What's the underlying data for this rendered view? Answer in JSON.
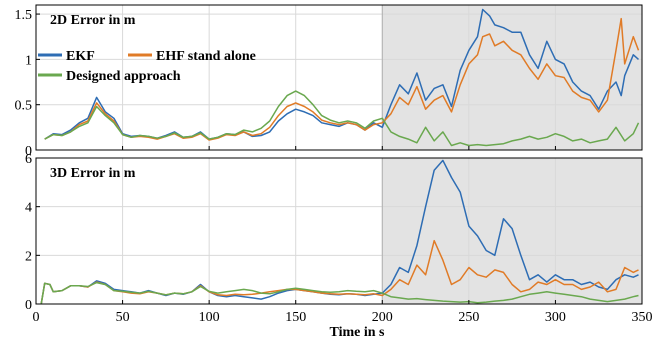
{
  "chart_data": [
    {
      "type": "line",
      "title": "2D Error in m",
      "xlabel": "",
      "ylabel": "",
      "xlim": [
        0,
        350
      ],
      "ylim": [
        0,
        1.6
      ],
      "xticks": [
        0,
        50,
        100,
        150,
        200,
        250,
        300,
        350
      ],
      "xtick_labels": [
        "",
        "",
        "",
        "",
        "",
        "",
        "",
        ""
      ],
      "yticks": [
        0,
        0.5,
        1,
        1.5
      ],
      "ytick_labels": [
        "0",
        "0.5",
        "1",
        "1.5"
      ],
      "grid": true,
      "legend": "top-left",
      "shaded_region": [
        200,
        350
      ],
      "series": [
        {
          "name": "EKF",
          "color": "#2e6db4",
          "x": [
            5,
            10,
            15,
            20,
            25,
            30,
            35,
            40,
            45,
            50,
            55,
            60,
            65,
            70,
            75,
            80,
            85,
            90,
            95,
            100,
            105,
            110,
            115,
            120,
            125,
            130,
            135,
            140,
            145,
            150,
            155,
            160,
            165,
            170,
            175,
            180,
            185,
            190,
            195,
            200,
            205,
            210,
            215,
            220,
            225,
            230,
            235,
            240,
            245,
            250,
            255,
            258,
            262,
            265,
            270,
            275,
            280,
            285,
            290,
            295,
            300,
            305,
            310,
            315,
            320,
            325,
            330,
            335,
            338,
            340,
            345,
            348
          ],
          "y": [
            0.12,
            0.18,
            0.17,
            0.22,
            0.3,
            0.35,
            0.58,
            0.42,
            0.35,
            0.18,
            0.15,
            0.16,
            0.15,
            0.13,
            0.16,
            0.2,
            0.14,
            0.15,
            0.2,
            0.12,
            0.14,
            0.18,
            0.17,
            0.2,
            0.15,
            0.16,
            0.2,
            0.32,
            0.4,
            0.45,
            0.42,
            0.38,
            0.3,
            0.28,
            0.26,
            0.3,
            0.28,
            0.22,
            0.3,
            0.25,
            0.5,
            0.72,
            0.62,
            0.85,
            0.55,
            0.68,
            0.72,
            0.48,
            0.88,
            1.1,
            1.25,
            1.55,
            1.48,
            1.38,
            1.35,
            1.3,
            1.3,
            1.05,
            0.9,
            1.2,
            1.0,
            0.95,
            0.75,
            0.65,
            0.6,
            0.45,
            0.65,
            0.75,
            0.6,
            0.82,
            1.05,
            1.0
          ]
        },
        {
          "name": "EHF stand alone",
          "color": "#e07b27",
          "x": [
            5,
            10,
            15,
            20,
            25,
            30,
            35,
            40,
            45,
            50,
            55,
            60,
            65,
            70,
            75,
            80,
            85,
            90,
            95,
            100,
            105,
            110,
            115,
            120,
            125,
            130,
            135,
            140,
            145,
            150,
            155,
            160,
            165,
            170,
            175,
            180,
            185,
            190,
            195,
            200,
            205,
            210,
            215,
            220,
            225,
            230,
            235,
            240,
            245,
            250,
            255,
            258,
            262,
            265,
            270,
            275,
            280,
            285,
            290,
            295,
            300,
            305,
            310,
            315,
            320,
            325,
            330,
            335,
            338,
            340,
            345,
            348
          ],
          "y": [
            0.12,
            0.17,
            0.16,
            0.2,
            0.28,
            0.32,
            0.52,
            0.4,
            0.32,
            0.17,
            0.14,
            0.15,
            0.14,
            0.12,
            0.15,
            0.18,
            0.13,
            0.14,
            0.18,
            0.11,
            0.13,
            0.17,
            0.16,
            0.2,
            0.16,
            0.18,
            0.25,
            0.38,
            0.48,
            0.52,
            0.48,
            0.42,
            0.33,
            0.3,
            0.28,
            0.3,
            0.28,
            0.22,
            0.28,
            0.3,
            0.4,
            0.58,
            0.5,
            0.7,
            0.45,
            0.55,
            0.6,
            0.42,
            0.72,
            0.95,
            1.05,
            1.25,
            1.28,
            1.15,
            1.2,
            1.1,
            1.05,
            0.9,
            0.78,
            0.95,
            0.82,
            0.8,
            0.65,
            0.58,
            0.55,
            0.42,
            0.55,
            1.1,
            1.45,
            0.95,
            1.25,
            1.1
          ]
        },
        {
          "name": "Designed approach",
          "color": "#6aa84f",
          "x": [
            5,
            10,
            15,
            20,
            25,
            30,
            35,
            40,
            45,
            50,
            55,
            60,
            65,
            70,
            75,
            80,
            85,
            90,
            95,
            100,
            105,
            110,
            115,
            120,
            125,
            130,
            135,
            140,
            145,
            150,
            155,
            160,
            165,
            170,
            175,
            180,
            185,
            190,
            195,
            200,
            205,
            210,
            215,
            220,
            225,
            230,
            235,
            240,
            245,
            250,
            255,
            260,
            265,
            270,
            275,
            280,
            285,
            290,
            295,
            300,
            305,
            310,
            315,
            320,
            325,
            330,
            335,
            340,
            345,
            348
          ],
          "y": [
            0.12,
            0.17,
            0.16,
            0.2,
            0.26,
            0.3,
            0.48,
            0.38,
            0.3,
            0.17,
            0.14,
            0.16,
            0.15,
            0.13,
            0.15,
            0.19,
            0.14,
            0.15,
            0.19,
            0.12,
            0.14,
            0.18,
            0.17,
            0.22,
            0.2,
            0.24,
            0.32,
            0.48,
            0.6,
            0.65,
            0.6,
            0.5,
            0.38,
            0.33,
            0.3,
            0.32,
            0.3,
            0.24,
            0.32,
            0.35,
            0.2,
            0.15,
            0.12,
            0.08,
            0.25,
            0.1,
            0.2,
            0.05,
            0.08,
            0.05,
            0.06,
            0.05,
            0.06,
            0.07,
            0.1,
            0.12,
            0.15,
            0.12,
            0.14,
            0.18,
            0.15,
            0.1,
            0.12,
            0.08,
            0.1,
            0.12,
            0.25,
            0.1,
            0.18,
            0.3
          ]
        }
      ]
    },
    {
      "type": "line",
      "title": "3D Error in m",
      "xlabel": "Time in s",
      "ylabel": "",
      "xlim": [
        0,
        350
      ],
      "ylim": [
        0,
        6
      ],
      "xticks": [
        0,
        50,
        100,
        150,
        200,
        250,
        300,
        350
      ],
      "xtick_labels": [
        "0",
        "50",
        "100",
        "150",
        "200",
        "250",
        "300",
        "350"
      ],
      "yticks": [
        0,
        2,
        4,
        6
      ],
      "ytick_labels": [
        "0",
        "2",
        "4",
        "6"
      ],
      "grid": true,
      "shaded_region": [
        200,
        350
      ],
      "series": [
        {
          "name": "EKF",
          "color": "#2e6db4",
          "x": [
            3,
            5,
            8,
            10,
            15,
            20,
            25,
            30,
            35,
            40,
            45,
            50,
            55,
            60,
            65,
            70,
            75,
            80,
            85,
            90,
            95,
            100,
            105,
            110,
            115,
            120,
            125,
            130,
            135,
            140,
            145,
            150,
            155,
            160,
            165,
            170,
            175,
            180,
            185,
            190,
            195,
            200,
            205,
            210,
            215,
            220,
            225,
            230,
            235,
            240,
            245,
            250,
            255,
            260,
            265,
            270,
            275,
            280,
            285,
            290,
            295,
            300,
            305,
            310,
            315,
            320,
            325,
            330,
            335,
            340,
            345,
            348
          ],
          "y": [
            0,
            0.85,
            0.8,
            0.5,
            0.55,
            0.75,
            0.75,
            0.7,
            0.95,
            0.85,
            0.6,
            0.55,
            0.5,
            0.45,
            0.55,
            0.45,
            0.35,
            0.45,
            0.4,
            0.5,
            0.8,
            0.5,
            0.35,
            0.3,
            0.35,
            0.3,
            0.25,
            0.2,
            0.3,
            0.45,
            0.55,
            0.6,
            0.55,
            0.5,
            0.45,
            0.4,
            0.38,
            0.42,
            0.4,
            0.35,
            0.4,
            0.45,
            0.8,
            1.5,
            1.3,
            2.4,
            4.0,
            5.5,
            5.9,
            5.2,
            4.6,
            3.2,
            2.8,
            2.2,
            2.0,
            3.5,
            3.1,
            2.0,
            1.0,
            1.2,
            0.9,
            1.2,
            1.0,
            1.0,
            0.8,
            0.9,
            0.7,
            0.6,
            1.0,
            1.2,
            1.1,
            1.2
          ]
        },
        {
          "name": "EHF stand alone",
          "color": "#e07b27",
          "x": [
            3,
            5,
            8,
            10,
            15,
            20,
            25,
            30,
            35,
            40,
            45,
            50,
            55,
            60,
            65,
            70,
            75,
            80,
            85,
            90,
            95,
            100,
            105,
            110,
            115,
            120,
            125,
            130,
            135,
            140,
            145,
            150,
            155,
            160,
            165,
            170,
            175,
            180,
            185,
            190,
            195,
            200,
            205,
            210,
            215,
            220,
            225,
            230,
            235,
            240,
            245,
            250,
            255,
            260,
            265,
            270,
            275,
            280,
            285,
            290,
            295,
            300,
            305,
            310,
            315,
            320,
            325,
            330,
            335,
            340,
            345,
            348
          ],
          "y": [
            0,
            0.85,
            0.8,
            0.5,
            0.55,
            0.75,
            0.75,
            0.7,
            0.9,
            0.8,
            0.55,
            0.5,
            0.45,
            0.42,
            0.5,
            0.45,
            0.38,
            0.45,
            0.42,
            0.5,
            0.75,
            0.5,
            0.38,
            0.35,
            0.4,
            0.38,
            0.4,
            0.45,
            0.5,
            0.55,
            0.6,
            0.6,
            0.55,
            0.5,
            0.45,
            0.42,
            0.4,
            0.42,
            0.4,
            0.38,
            0.42,
            0.35,
            0.6,
            1.0,
            0.8,
            1.6,
            1.2,
            2.6,
            1.8,
            0.8,
            1.0,
            1.5,
            1.2,
            1.1,
            1.4,
            1.3,
            0.8,
            0.5,
            0.6,
            0.9,
            0.8,
            1.0,
            0.8,
            0.8,
            0.6,
            0.7,
            0.9,
            0.5,
            0.6,
            1.5,
            1.3,
            1.4
          ]
        },
        {
          "name": "Designed approach",
          "color": "#6aa84f",
          "x": [
            3,
            5,
            8,
            10,
            15,
            20,
            25,
            30,
            35,
            40,
            45,
            50,
            55,
            60,
            65,
            70,
            75,
            80,
            85,
            90,
            95,
            100,
            105,
            110,
            115,
            120,
            125,
            130,
            135,
            140,
            145,
            150,
            155,
            160,
            165,
            170,
            175,
            180,
            185,
            190,
            195,
            200,
            205,
            210,
            215,
            220,
            225,
            230,
            235,
            240,
            245,
            250,
            255,
            260,
            265,
            270,
            275,
            280,
            285,
            290,
            295,
            300,
            305,
            310,
            315,
            320,
            325,
            330,
            335,
            340,
            345,
            348
          ],
          "y": [
            0,
            0.85,
            0.8,
            0.5,
            0.55,
            0.75,
            0.75,
            0.72,
            0.88,
            0.8,
            0.55,
            0.52,
            0.48,
            0.45,
            0.52,
            0.45,
            0.38,
            0.45,
            0.42,
            0.5,
            0.72,
            0.52,
            0.45,
            0.5,
            0.55,
            0.6,
            0.55,
            0.45,
            0.42,
            0.5,
            0.6,
            0.65,
            0.6,
            0.55,
            0.5,
            0.48,
            0.5,
            0.55,
            0.52,
            0.5,
            0.55,
            0.45,
            0.3,
            0.25,
            0.2,
            0.22,
            0.18,
            0.15,
            0.12,
            0.1,
            0.08,
            0.1,
            0.05,
            0.08,
            0.12,
            0.15,
            0.2,
            0.3,
            0.4,
            0.45,
            0.5,
            0.45,
            0.4,
            0.35,
            0.3,
            0.2,
            0.15,
            0.1,
            0.15,
            0.2,
            0.3,
            0.35
          ]
        }
      ]
    }
  ]
}
